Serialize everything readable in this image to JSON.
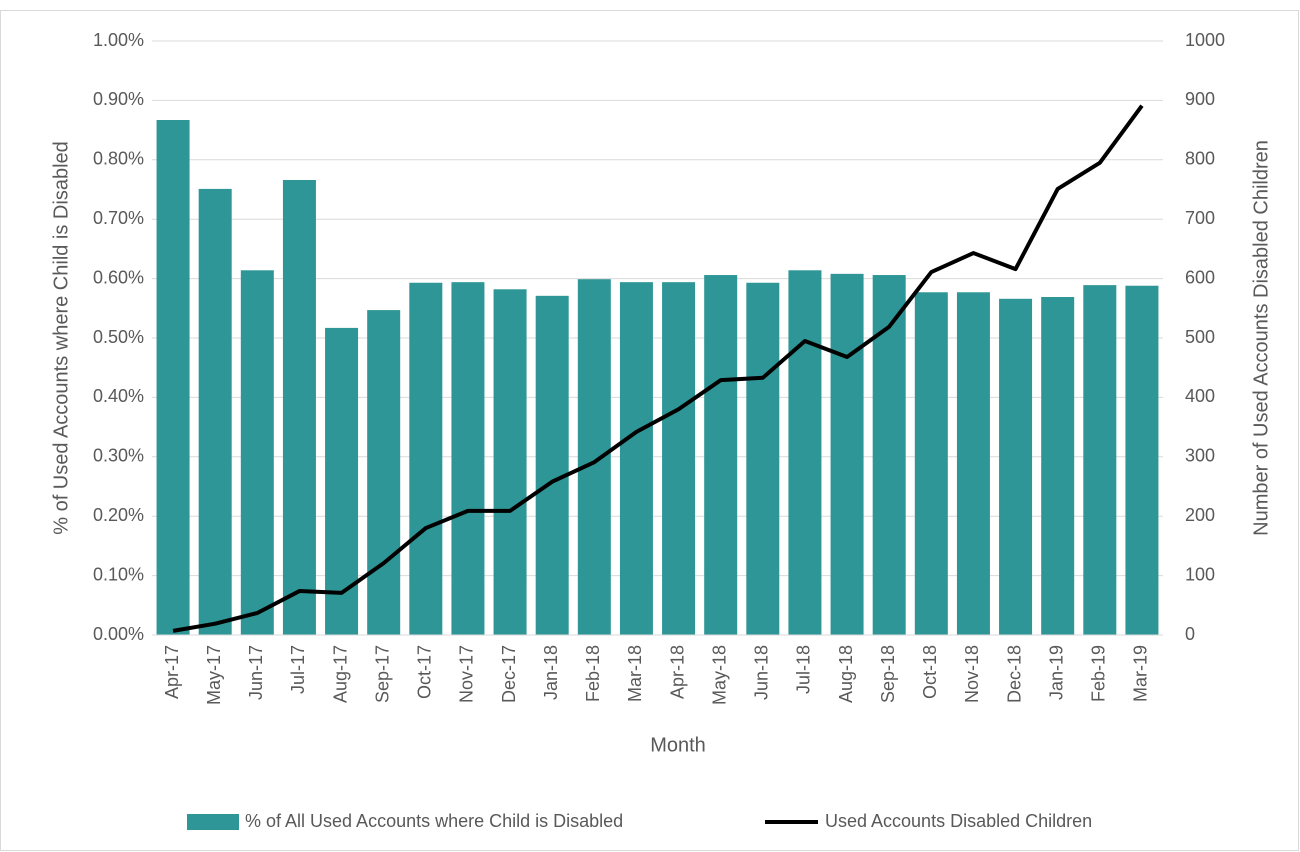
{
  "chart_data": {
    "type": "bar",
    "x_label": "Month",
    "y_label": "% of Used Accounts where Child is Disabled",
    "y2_label": "Number of Used Accounts Disabled Children",
    "categories": [
      "Apr-17",
      "May-17",
      "Jun-17",
      "Jul-17",
      "Aug-17",
      "Sep-17",
      "Oct-17",
      "Nov-17",
      "Dec-17",
      "Jan-18",
      "Feb-18",
      "Mar-18",
      "Apr-18",
      "May-18",
      "Jun-18",
      "Jul-18",
      "Aug-18",
      "Sep-18",
      "Oct-18",
      "Nov-18",
      "Dec-18",
      "Jan-19",
      "Feb-19",
      "Mar-19"
    ],
    "series": [
      {
        "name": "% of All Used Accounts where Child is Disabled",
        "type": "bar",
        "color": "#2e9696",
        "values": [
          0.867,
          0.751,
          0.614,
          0.766,
          0.517,
          0.547,
          0.593,
          0.594,
          0.582,
          0.571,
          0.599,
          0.594,
          0.594,
          0.606,
          0.593,
          0.614,
          0.608,
          0.606,
          0.577,
          0.577,
          0.566,
          0.569,
          0.589,
          0.588
        ]
      },
      {
        "name": "Used Accounts Disabled Children",
        "type": "line",
        "axis": "y2",
        "color": "#000000",
        "values": [
          7,
          19,
          37,
          74,
          71,
          121,
          180,
          209,
          209,
          258,
          291,
          342,
          380,
          429,
          433,
          495,
          468,
          519,
          611,
          643,
          616,
          751,
          795,
          891
        ]
      }
    ],
    "ylim": [
      0,
      1.0
    ],
    "yticks": [
      {
        "value": 0,
        "label": "0.00%"
      },
      {
        "value": 0.1,
        "label": "0.10%"
      },
      {
        "value": 0.2,
        "label": "0.20%"
      },
      {
        "value": 0.3,
        "label": "0.30%"
      },
      {
        "value": 0.4,
        "label": "0.40%"
      },
      {
        "value": 0.5,
        "label": "0.50%"
      },
      {
        "value": 0.6,
        "label": "0.60%"
      },
      {
        "value": 0.7,
        "label": "0.70%"
      },
      {
        "value": 0.8,
        "label": "0.80%"
      },
      {
        "value": 0.9,
        "label": "0.90%"
      },
      {
        "value": 1.0,
        "label": "1.00%"
      }
    ],
    "y2lim": [
      0,
      1000
    ],
    "y2ticks": [
      0,
      100,
      200,
      300,
      400,
      500,
      600,
      700,
      800,
      900,
      1000
    ],
    "grid": true,
    "legend": "bottom"
  }
}
